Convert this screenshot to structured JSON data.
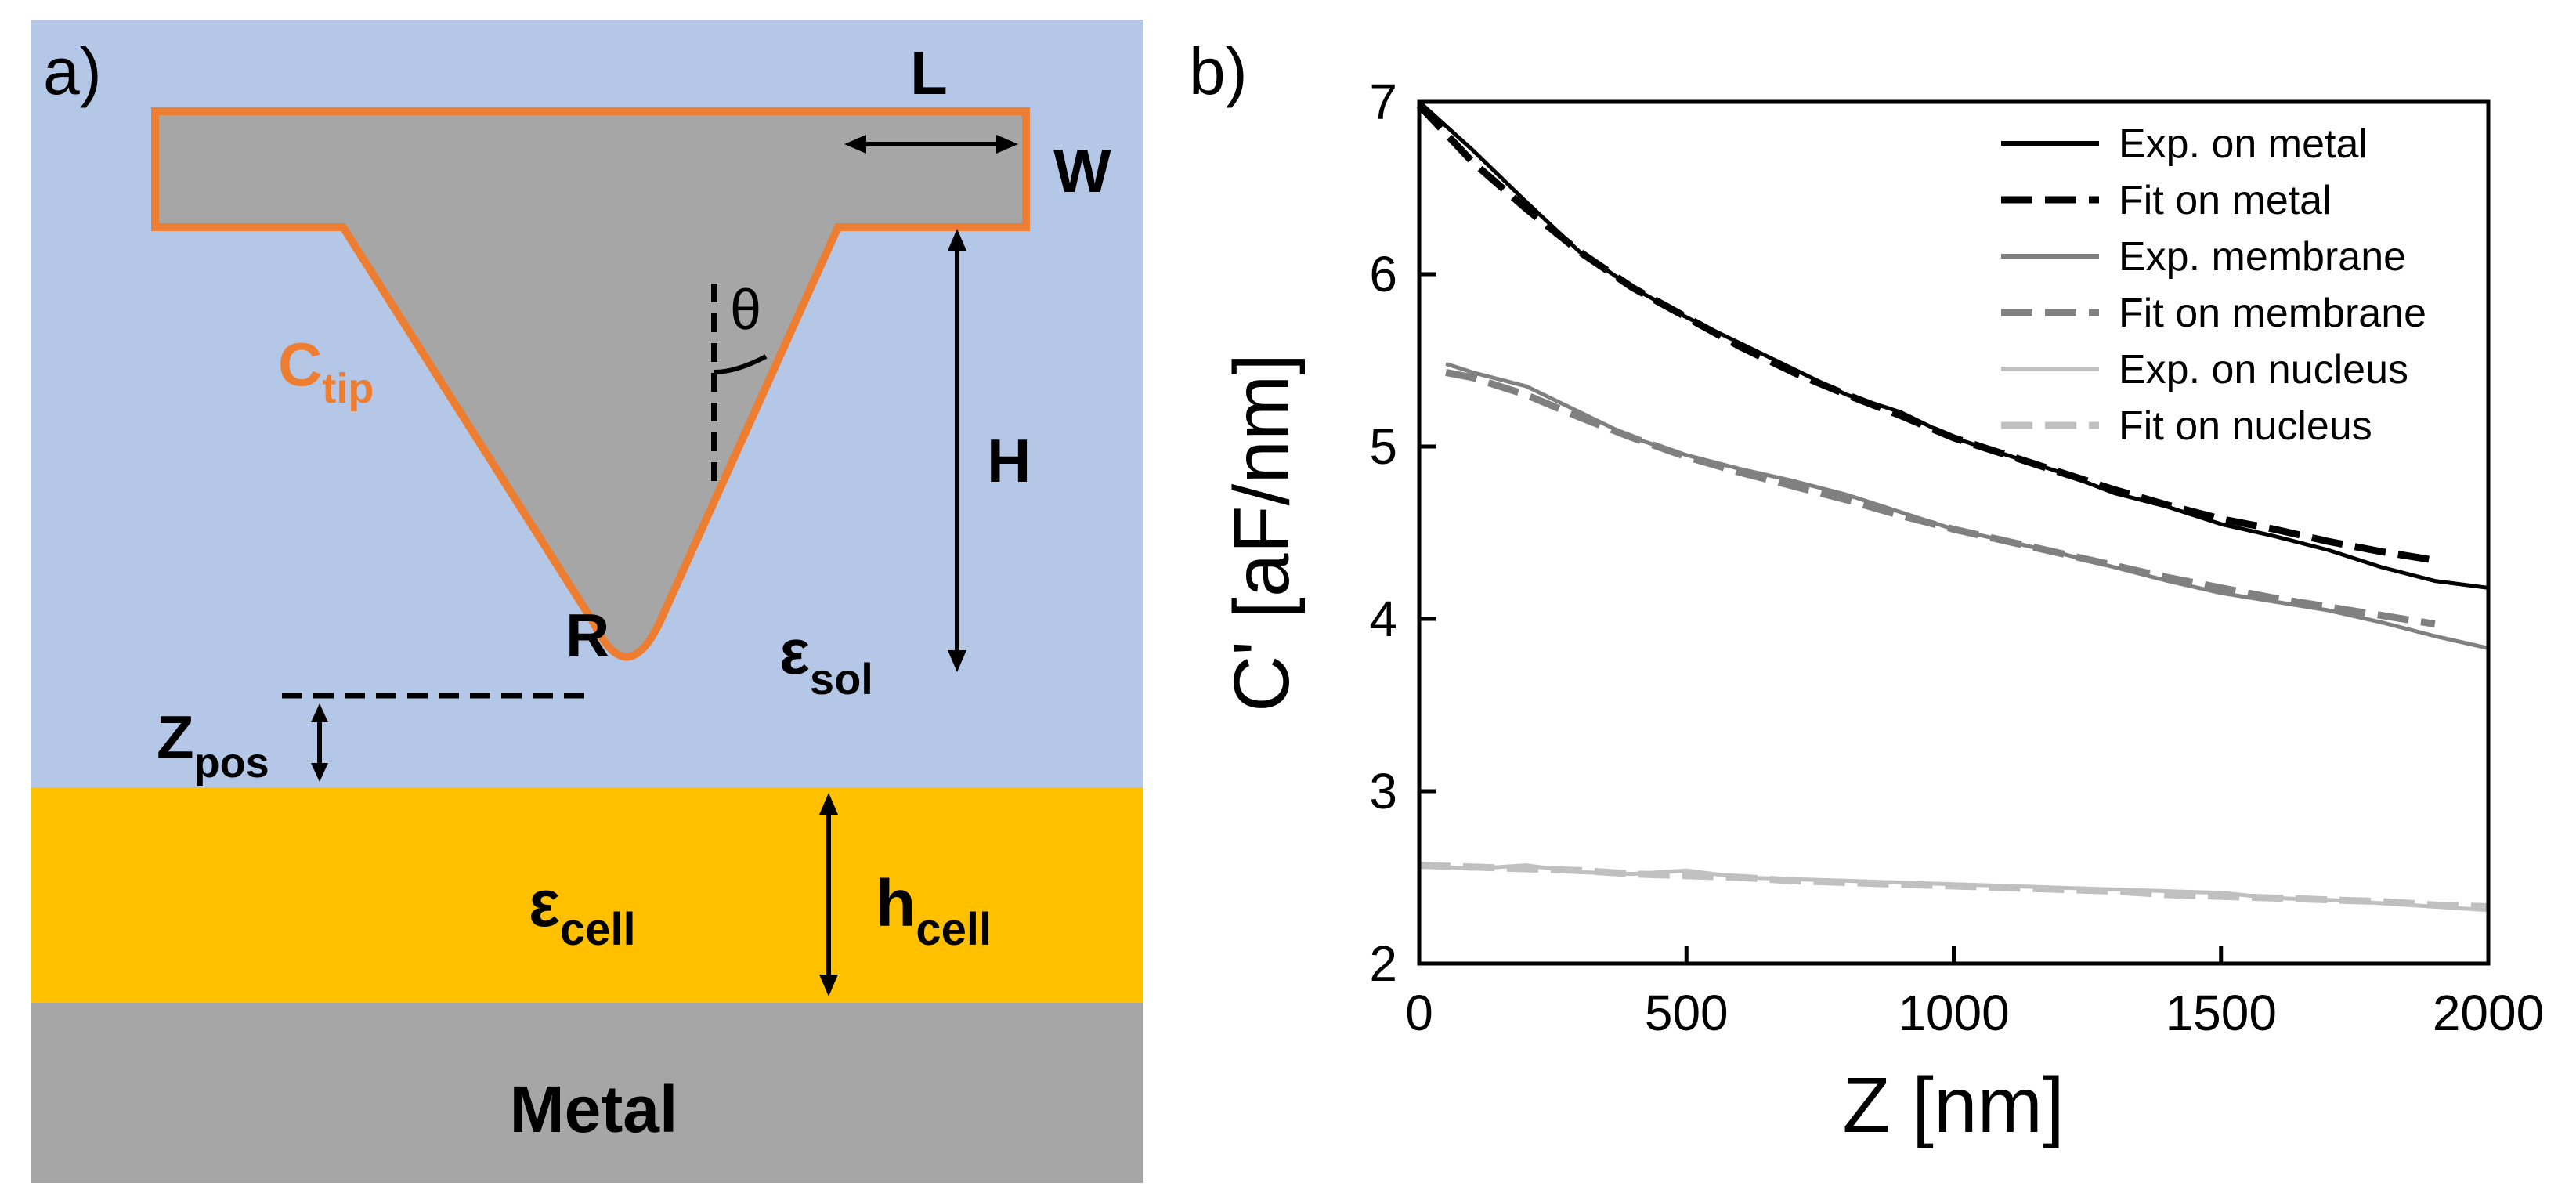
{
  "panel_a": {
    "label": "a)",
    "dimensions": {
      "L": "L",
      "W": "W",
      "H": "H",
      "R": "R",
      "theta": "θ"
    },
    "c_tip": {
      "main": "C",
      "sub": "tip"
    },
    "eps_sol": {
      "main": "ε",
      "sub": "sol"
    },
    "eps_cell": {
      "main": "ε",
      "sub": "cell"
    },
    "h_cell": {
      "main": "h",
      "sub": "cell"
    },
    "z_pos": {
      "main": "Z",
      "sub": "pos"
    },
    "metal_label": "Metal",
    "colors": {
      "solution": "#B4C7E7",
      "cell": "#FFC000",
      "metal": "#A6A6A6",
      "tip_fill": "#A6A6A6",
      "tip_outline": "#ED7D31"
    }
  },
  "panel_b": {
    "label": "b)"
  },
  "chart_data": {
    "type": "line",
    "title": "",
    "xlabel": "Z [nm]",
    "ylabel": "C' [aF/nm]",
    "xlim": [
      0,
      2000
    ],
    "ylim": [
      2,
      7
    ],
    "xticks": [
      0,
      500,
      1000,
      1500,
      2000
    ],
    "yticks": [
      2,
      3,
      4,
      5,
      6,
      7
    ],
    "legend_position": "top-right",
    "series": [
      {
        "name": "Exp. on metal",
        "style": "solid",
        "color": "#000000",
        "x": [
          0,
          100,
          200,
          300,
          400,
          500,
          600,
          700,
          800,
          900,
          1000,
          1100,
          1200,
          1300,
          1400,
          1500,
          1600,
          1700,
          1800,
          1900,
          2000
        ],
        "y": [
          7.0,
          6.72,
          6.42,
          6.13,
          5.92,
          5.75,
          5.6,
          5.45,
          5.3,
          5.2,
          5.05,
          4.95,
          4.85,
          4.73,
          4.65,
          4.55,
          4.48,
          4.4,
          4.3,
          4.22,
          4.18
        ]
      },
      {
        "name": "Fit on metal",
        "style": "dashed",
        "color": "#000000",
        "x": [
          0,
          100,
          200,
          300,
          400,
          500,
          600,
          700,
          800,
          900,
          1000,
          1100,
          1200,
          1300,
          1400,
          1500,
          1600,
          1700,
          1800,
          1900
        ],
        "y": [
          6.98,
          6.65,
          6.38,
          6.13,
          5.92,
          5.75,
          5.58,
          5.43,
          5.3,
          5.18,
          5.05,
          4.95,
          4.85,
          4.75,
          4.66,
          4.58,
          4.52,
          4.45,
          4.39,
          4.34
        ]
      },
      {
        "name": "Exp. membrane",
        "style": "solid",
        "color": "#808080",
        "x": [
          50,
          100,
          200,
          300,
          400,
          500,
          600,
          700,
          800,
          900,
          1000,
          1100,
          1200,
          1300,
          1400,
          1500,
          1600,
          1700,
          1800,
          1900,
          2000
        ],
        "y": [
          5.48,
          5.43,
          5.35,
          5.2,
          5.05,
          4.95,
          4.87,
          4.8,
          4.72,
          4.62,
          4.52,
          4.45,
          4.38,
          4.3,
          4.22,
          4.15,
          4.1,
          4.05,
          3.98,
          3.9,
          3.83
        ]
      },
      {
        "name": "Fit on membrane",
        "style": "dashed",
        "color": "#808080",
        "x": [
          50,
          100,
          200,
          300,
          400,
          500,
          600,
          700,
          800,
          900,
          1000,
          1100,
          1200,
          1300,
          1400,
          1500,
          1600,
          1700,
          1800,
          1900
        ],
        "y": [
          5.43,
          5.4,
          5.3,
          5.17,
          5.05,
          4.94,
          4.85,
          4.77,
          4.69,
          4.6,
          4.52,
          4.45,
          4.38,
          4.31,
          4.24,
          4.18,
          4.12,
          4.07,
          4.02,
          3.97
        ]
      },
      {
        "name": "Exp. on nucleus",
        "style": "solid",
        "color": "#C0C0C0",
        "x": [
          0,
          100,
          200,
          300,
          400,
          500,
          600,
          700,
          800,
          900,
          1000,
          1100,
          1200,
          1300,
          1400,
          1500,
          1600,
          1700,
          1800,
          1900,
          2000
        ],
        "y": [
          2.57,
          2.55,
          2.57,
          2.53,
          2.52,
          2.54,
          2.5,
          2.49,
          2.48,
          2.47,
          2.46,
          2.45,
          2.44,
          2.43,
          2.42,
          2.41,
          2.38,
          2.37,
          2.35,
          2.33,
          2.31
        ]
      },
      {
        "name": "Fit on nucleus",
        "style": "dashed",
        "color": "#C0C0C0",
        "x": [
          0,
          100,
          200,
          300,
          400,
          500,
          600,
          700,
          800,
          900,
          1000,
          1100,
          1200,
          1300,
          1400,
          1500,
          1600,
          1700,
          1800,
          1900,
          2000
        ],
        "y": [
          2.57,
          2.56,
          2.55,
          2.54,
          2.52,
          2.51,
          2.5,
          2.48,
          2.47,
          2.46,
          2.45,
          2.44,
          2.43,
          2.42,
          2.4,
          2.39,
          2.38,
          2.37,
          2.36,
          2.34,
          2.33
        ]
      }
    ]
  }
}
